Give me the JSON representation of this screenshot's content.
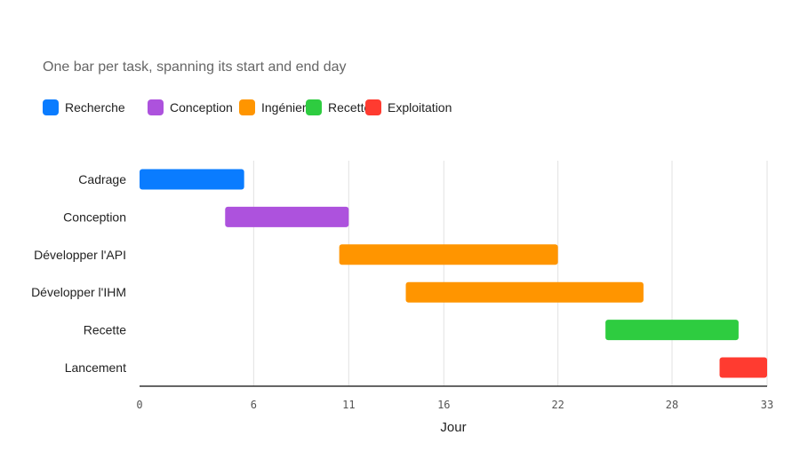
{
  "chart_data": {
    "type": "bar",
    "orientation": "horizontal-range",
    "subtitle": "One bar per task, spanning its start and end day",
    "xlabel": "Jour",
    "xlim": [
      0,
      33
    ],
    "x_ticks": [
      0,
      6,
      11,
      16,
      22,
      28,
      33
    ],
    "grid": true,
    "legend_position": "top-left",
    "legend": [
      {
        "name": "Recherche",
        "color": "#0a7cff"
      },
      {
        "name": "Conception",
        "color": "#ad52dd"
      },
      {
        "name": "Ingénierie",
        "color": "#ff9500"
      },
      {
        "name": "Recette",
        "color": "#2ecc40"
      },
      {
        "name": "Exploitation",
        "color": "#ff3b30"
      }
    ],
    "tasks": [
      {
        "name": "Cadrage",
        "start": 0,
        "end": 5.5,
        "category": "Recherche"
      },
      {
        "name": "Conception",
        "start": 4.5,
        "end": 11,
        "category": "Conception"
      },
      {
        "name": "Développer l'API",
        "start": 10.5,
        "end": 22,
        "category": "Ingénierie"
      },
      {
        "name": "Développer l'IHM",
        "start": 14,
        "end": 26.5,
        "category": "Ingénierie"
      },
      {
        "name": "Recette",
        "start": 24.5,
        "end": 31.5,
        "category": "Recette"
      },
      {
        "name": "Lancement",
        "start": 30.5,
        "end": 33,
        "category": "Exploitation"
      }
    ]
  }
}
